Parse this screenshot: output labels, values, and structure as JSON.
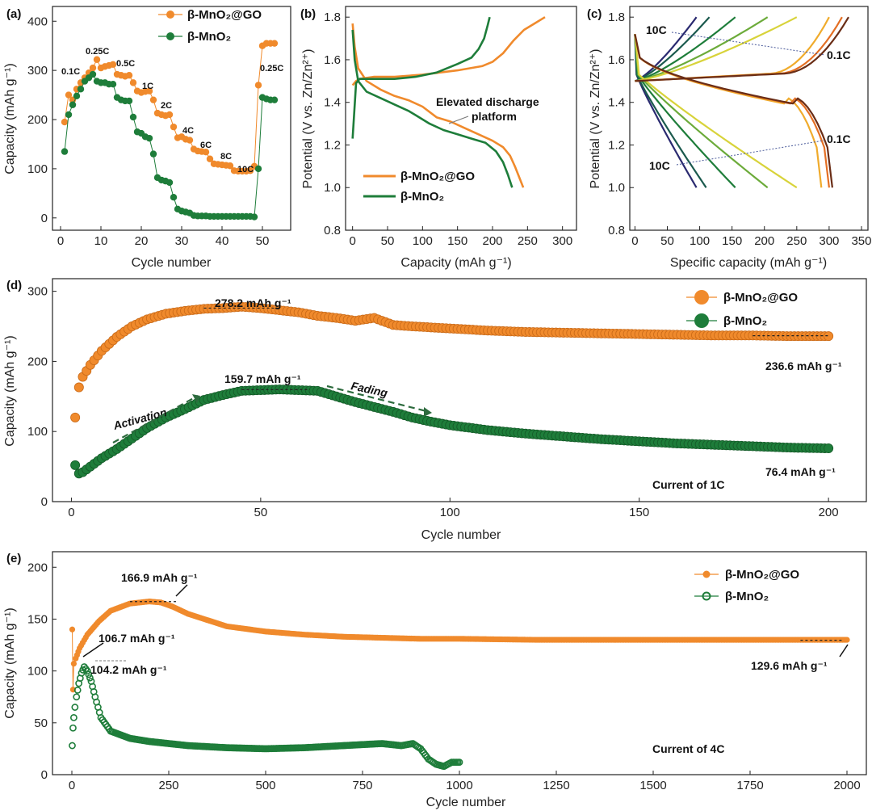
{
  "colors": {
    "orange": "#f08a2c",
    "green": "#1e7d3a",
    "axis": "#222222"
  },
  "chart_data": [
    {
      "id": "a",
      "panel_label": "(a)",
      "type": "scatter",
      "xlabel": "Cycle number",
      "ylabel": "Capacity (mAh g⁻¹)",
      "xlim": [
        -2,
        57
      ],
      "ylim": [
        -25,
        430
      ],
      "xticks": [
        0,
        10,
        20,
        30,
        40,
        50
      ],
      "yticks": [
        0,
        100,
        200,
        300,
        400
      ],
      "legend": [
        "β-MnO₂@GO",
        "β-MnO₂"
      ],
      "series": [
        {
          "name": "β-MnO₂@GO",
          "color": "orange",
          "x": [
            1,
            2,
            3,
            4,
            5,
            6,
            7,
            8,
            9,
            10,
            11,
            12,
            13,
            14,
            15,
            16,
            17,
            18,
            19,
            20,
            21,
            22,
            23,
            24,
            25,
            26,
            27,
            28,
            29,
            30,
            31,
            32,
            33,
            34,
            35,
            36,
            37,
            38,
            39,
            40,
            41,
            42,
            43,
            44,
            45,
            46,
            47,
            48,
            49,
            50,
            51,
            52,
            53
          ],
          "y": [
            195,
            250,
            240,
            262,
            275,
            285,
            295,
            305,
            322,
            305,
            308,
            310,
            312,
            292,
            290,
            288,
            290,
            275,
            258,
            255,
            257,
            258,
            240,
            213,
            210,
            208,
            210,
            185,
            163,
            165,
            160,
            158,
            140,
            136,
            135,
            134,
            120,
            110,
            109,
            108,
            107,
            106,
            96,
            95,
            95,
            95,
            96,
            105,
            270,
            350,
            355,
            355,
            355
          ]
        },
        {
          "name": "β-MnO₂",
          "color": "green",
          "x": [
            1,
            2,
            3,
            4,
            5,
            6,
            7,
            8,
            9,
            10,
            11,
            12,
            13,
            14,
            15,
            16,
            17,
            18,
            19,
            20,
            21,
            22,
            23,
            24,
            25,
            26,
            27,
            28,
            29,
            30,
            31,
            32,
            33,
            34,
            35,
            36,
            37,
            38,
            39,
            40,
            41,
            42,
            43,
            44,
            45,
            46,
            47,
            48,
            49,
            50,
            51,
            52,
            53
          ],
          "y": [
            135,
            210,
            230,
            248,
            262,
            278,
            285,
            292,
            278,
            275,
            275,
            272,
            272,
            245,
            240,
            238,
            238,
            205,
            175,
            172,
            165,
            162,
            130,
            82,
            77,
            75,
            72,
            42,
            18,
            14,
            12,
            10,
            5,
            4,
            4,
            4,
            3,
            3,
            3,
            3,
            3,
            3,
            3,
            3,
            3,
            3,
            3,
            2,
            100,
            245,
            242,
            240,
            240
          ]
        }
      ],
      "rate_labels": [
        "0.1C",
        "0.25C",
        "0.5C",
        "1C",
        "2C",
        "4C",
        "6C",
        "8C",
        "10C",
        "0.25C"
      ]
    },
    {
      "id": "b",
      "panel_label": "(b)",
      "type": "line",
      "xlabel": "Capacity (mAh g⁻¹)",
      "ylabel": "Potential (V vs. Zn/Zn²⁺)",
      "xlim": [
        -10,
        320
      ],
      "ylim": [
        0.8,
        1.85
      ],
      "xticks": [
        0,
        50,
        100,
        150,
        200,
        250,
        300
      ],
      "yticks": [
        0.8,
        1.0,
        1.2,
        1.4,
        1.6,
        1.8
      ],
      "legend": [
        "β-MnO₂@GO",
        "β-MnO₂"
      ],
      "annotation": [
        "Elevated discharge",
        "platform"
      ],
      "series": [
        {
          "name": "β-MnO₂@GO charge",
          "color": "orange",
          "x": [
            0,
            5,
            10,
            30,
            60,
            100,
            150,
            185,
            200,
            215,
            230,
            245,
            260,
            275
          ],
          "y": [
            1.48,
            1.5,
            1.51,
            1.52,
            1.52,
            1.53,
            1.55,
            1.57,
            1.59,
            1.63,
            1.69,
            1.74,
            1.77,
            1.8
          ]
        },
        {
          "name": "β-MnO₂@GO discharge",
          "color": "orange",
          "x": [
            0,
            3,
            8,
            20,
            40,
            60,
            80,
            100,
            120,
            140,
            160,
            180,
            200,
            215,
            225,
            232,
            238,
            244
          ],
          "y": [
            1.77,
            1.66,
            1.56,
            1.5,
            1.46,
            1.43,
            1.41,
            1.38,
            1.33,
            1.31,
            1.28,
            1.25,
            1.22,
            1.19,
            1.15,
            1.1,
            1.05,
            1.0
          ]
        },
        {
          "name": "β-MnO₂ charge",
          "color": "green",
          "x": [
            0,
            5,
            10,
            30,
            60,
            90,
            120,
            150,
            170,
            180,
            188,
            193,
            196
          ],
          "y": [
            1.23,
            1.49,
            1.51,
            1.51,
            1.51,
            1.52,
            1.54,
            1.58,
            1.61,
            1.65,
            1.7,
            1.76,
            1.8
          ]
        },
        {
          "name": "β-MnO₂ discharge",
          "color": "green",
          "x": [
            0,
            3,
            8,
            20,
            40,
            60,
            80,
            90,
            110,
            130,
            150,
            170,
            190,
            205,
            215,
            222,
            228
          ],
          "y": [
            1.74,
            1.6,
            1.5,
            1.45,
            1.42,
            1.39,
            1.36,
            1.34,
            1.3,
            1.27,
            1.25,
            1.23,
            1.21,
            1.17,
            1.12,
            1.06,
            1.0
          ]
        }
      ]
    },
    {
      "id": "c",
      "panel_label": "(c)",
      "type": "line",
      "xlabel": "Specific capacity (mAh g⁻¹)",
      "ylabel": "Potential (V vs. Zn/Zn²⁺)",
      "xlim": [
        -8,
        360
      ],
      "ylim": [
        0.8,
        1.85
      ],
      "xticks": [
        0,
        50,
        100,
        150,
        200,
        250,
        300,
        350
      ],
      "yticks": [
        0.8,
        1.0,
        1.2,
        1.4,
        1.6,
        1.8
      ],
      "rate_labels": {
        "charge_high": "10C",
        "charge_low": "0.1C",
        "discharge_low": "0.1C",
        "discharge_high": "10C"
      },
      "capacities": {
        "charge": [
          95,
          115,
          155,
          205,
          250,
          300,
          320,
          330
        ],
        "discharge": [
          95,
          110,
          155,
          205,
          250,
          288,
          300,
          305
        ]
      },
      "curve_colors": [
        "#2a2a70",
        "#1b5a4e",
        "#1e7d3a",
        "#6cab3a",
        "#d8d33a",
        "#f0ab2c",
        "#e46f24",
        "#6a2d16"
      ]
    },
    {
      "id": "d",
      "panel_label": "(d)",
      "type": "scatter",
      "xlabel": "Cycle number",
      "ylabel": "Capacity (mAh g⁻¹)",
      "xlim": [
        -5,
        210
      ],
      "ylim": [
        0,
        318
      ],
      "xticks": [
        0,
        50,
        100,
        150,
        200
      ],
      "yticks": [
        0,
        100,
        200,
        300
      ],
      "legend": [
        "β-MnO₂@GO",
        "β-MnO₂"
      ],
      "annotations": {
        "go_peak": "278.2 mAh g⁻¹",
        "go_final": "236.6 mAh g⁻¹",
        "mn_peak": "159.7 mAh g⁻¹",
        "mn_final": "76.4 mAh g⁻¹",
        "activation": "Activation",
        "fading": "Fading",
        "current": "Current of 1C"
      },
      "series": [
        {
          "name": "β-MnO₂@GO",
          "color": "orange",
          "x": [
            1,
            2,
            3,
            5,
            8,
            12,
            16,
            20,
            25,
            30,
            35,
            40,
            45,
            50,
            55,
            60,
            65,
            70,
            75,
            80,
            85,
            90,
            100,
            110,
            120,
            130,
            140,
            150,
            160,
            170,
            180,
            190,
            200
          ],
          "y": [
            120,
            163,
            178,
            195,
            215,
            235,
            250,
            260,
            268,
            272,
            275,
            276,
            278,
            276,
            273,
            270,
            265,
            262,
            258,
            262,
            252,
            250,
            247,
            244,
            242,
            241,
            240,
            239,
            238,
            237,
            237,
            236,
            236
          ]
        },
        {
          "name": "β-MnO₂",
          "color": "green",
          "x": [
            1,
            2,
            3,
            5,
            8,
            12,
            16,
            20,
            25,
            30,
            35,
            40,
            45,
            50,
            55,
            60,
            65,
            70,
            75,
            80,
            85,
            90,
            95,
            100,
            110,
            120,
            130,
            140,
            150,
            160,
            170,
            180,
            190,
            200
          ],
          "y": [
            52,
            40,
            42,
            50,
            62,
            75,
            90,
            105,
            120,
            132,
            145,
            152,
            158,
            159,
            160,
            159,
            158,
            150,
            142,
            135,
            128,
            120,
            114,
            109,
            102,
            97,
            93,
            89,
            86,
            83,
            81,
            79,
            77,
            76
          ]
        }
      ]
    },
    {
      "id": "e",
      "panel_label": "(e)",
      "type": "scatter",
      "xlabel": "Cycle number",
      "ylabel": "Capacity (mAh g⁻¹)",
      "xlim": [
        -50,
        2050
      ],
      "ylim": [
        0,
        215
      ],
      "xticks": [
        0,
        250,
        500,
        750,
        1000,
        1250,
        1500,
        1750,
        2000
      ],
      "yticks": [
        0,
        50,
        100,
        150,
        200
      ],
      "legend": [
        "β-MnO₂@GO",
        "β-MnO₂"
      ],
      "annotations": {
        "go_peak": "166.9 mAh g⁻¹",
        "go_start": "106.7 mAh g⁻¹",
        "mn_peak": "104.2 mAh g⁻¹",
        "go_final": "129.6 mAh g⁻¹",
        "current": "Current of 4C"
      },
      "series": [
        {
          "name": "β-MnO₂@GO",
          "color": "orange",
          "x": [
            1,
            3,
            5,
            10,
            20,
            40,
            70,
            100,
            150,
            200,
            230,
            260,
            300,
            400,
            500,
            600,
            700,
            800,
            900,
            1000,
            1200,
            1400,
            1600,
            1800,
            2000
          ],
          "y": [
            140,
            82,
            107,
            112,
            122,
            135,
            148,
            158,
            165,
            167,
            166,
            162,
            155,
            143,
            138,
            135,
            133,
            132,
            131,
            131,
            130,
            130,
            130,
            130,
            130
          ]
        },
        {
          "name": "β-MnO₂",
          "color": "green",
          "x": [
            1,
            3,
            5,
            8,
            12,
            18,
            25,
            32,
            40,
            50,
            60,
            75,
            100,
            150,
            200,
            300,
            400,
            500,
            600,
            700,
            800,
            850,
            880,
            900,
            920,
            940,
            960,
            980,
            1000
          ],
          "y": [
            28,
            45,
            55,
            65,
            75,
            88,
            98,
            104,
            100,
            90,
            75,
            55,
            42,
            35,
            32,
            28,
            26,
            25,
            26,
            28,
            30,
            28,
            30,
            25,
            15,
            10,
            8,
            12,
            12
          ]
        }
      ]
    }
  ]
}
